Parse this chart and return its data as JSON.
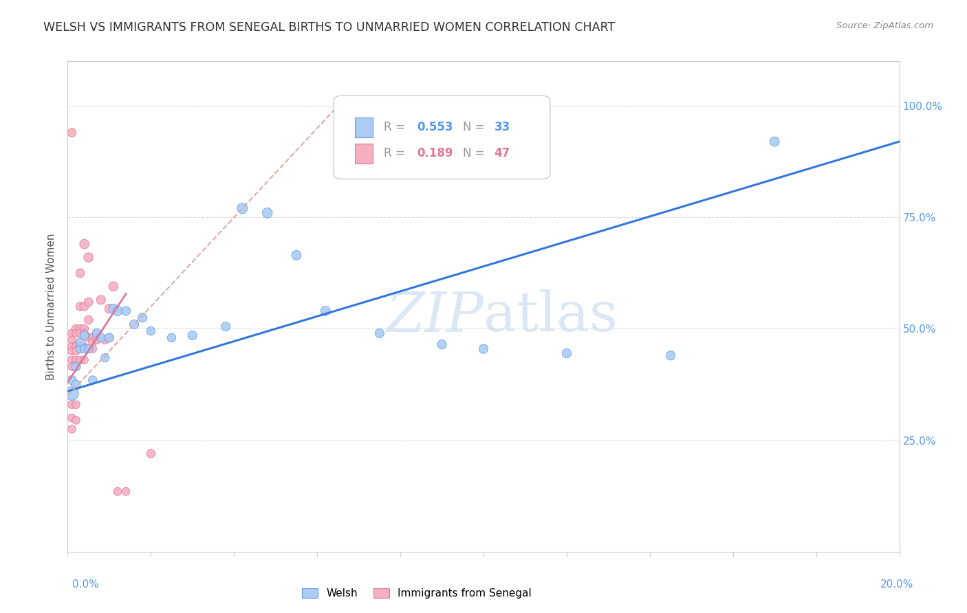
{
  "title": "WELSH VS IMMIGRANTS FROM SENEGAL BIRTHS TO UNMARRIED WOMEN CORRELATION CHART",
  "source": "Source: ZipAtlas.com",
  "ylabel": "Births to Unmarried Women",
  "ytick_labels": [
    "25.0%",
    "50.0%",
    "75.0%",
    "100.0%"
  ],
  "ytick_values": [
    0.25,
    0.5,
    0.75,
    1.0
  ],
  "xlim": [
    0.0,
    0.2
  ],
  "ylim": [
    0.0,
    1.1
  ],
  "welsh_color": "#aaccf5",
  "senegal_color": "#f5b0c0",
  "welsh_edge_color": "#6699dd",
  "senegal_edge_color": "#dd7799",
  "welsh_line_color": "#3377dd",
  "senegal_line_color": "#dd7799",
  "dashed_line_color": "#ddaaaa",
  "watermark_color": "#c5d8f0",
  "welsh_x": [
    0.001,
    0.001,
    0.002,
    0.002,
    0.003,
    0.003,
    0.004,
    0.004,
    0.005,
    0.006,
    0.007,
    0.008,
    0.009,
    0.01,
    0.011,
    0.012,
    0.014,
    0.016,
    0.018,
    0.02,
    0.025,
    0.03,
    0.038,
    0.042,
    0.048,
    0.055,
    0.062,
    0.075,
    0.09,
    0.1,
    0.12,
    0.145,
    0.17
  ],
  "welsh_y": [
    0.355,
    0.385,
    0.375,
    0.415,
    0.455,
    0.47,
    0.455,
    0.485,
    0.455,
    0.385,
    0.49,
    0.48,
    0.435,
    0.48,
    0.545,
    0.54,
    0.54,
    0.51,
    0.525,
    0.495,
    0.48,
    0.485,
    0.505,
    0.77,
    0.76,
    0.665,
    0.54,
    0.49,
    0.465,
    0.455,
    0.445,
    0.44,
    0.92
  ],
  "welsh_sizes": [
    200,
    90,
    90,
    90,
    80,
    80,
    80,
    80,
    80,
    80,
    90,
    90,
    80,
    90,
    100,
    100,
    90,
    90,
    90,
    80,
    80,
    90,
    90,
    120,
    110,
    100,
    100,
    90,
    90,
    90,
    90,
    90,
    100
  ],
  "senegal_x": [
    0.001,
    0.001,
    0.001,
    0.001,
    0.001,
    0.001,
    0.001,
    0.001,
    0.001,
    0.001,
    0.002,
    0.002,
    0.002,
    0.002,
    0.002,
    0.002,
    0.002,
    0.002,
    0.003,
    0.003,
    0.003,
    0.003,
    0.003,
    0.003,
    0.004,
    0.004,
    0.004,
    0.004,
    0.004,
    0.004,
    0.005,
    0.005,
    0.005,
    0.005,
    0.006,
    0.006,
    0.006,
    0.007,
    0.007,
    0.008,
    0.009,
    0.01,
    0.01,
    0.011,
    0.012,
    0.014,
    0.02
  ],
  "senegal_y": [
    0.94,
    0.49,
    0.475,
    0.46,
    0.45,
    0.43,
    0.415,
    0.33,
    0.3,
    0.275,
    0.5,
    0.49,
    0.46,
    0.45,
    0.43,
    0.415,
    0.33,
    0.295,
    0.625,
    0.55,
    0.5,
    0.49,
    0.46,
    0.43,
    0.69,
    0.55,
    0.5,
    0.49,
    0.46,
    0.43,
    0.66,
    0.56,
    0.52,
    0.48,
    0.48,
    0.47,
    0.455,
    0.49,
    0.475,
    0.565,
    0.475,
    0.545,
    0.48,
    0.595,
    0.135,
    0.135,
    0.22
  ],
  "senegal_sizes": [
    80,
    70,
    70,
    70,
    70,
    70,
    70,
    70,
    70,
    70,
    80,
    70,
    70,
    70,
    70,
    70,
    70,
    70,
    85,
    80,
    75,
    70,
    70,
    70,
    95,
    80,
    75,
    70,
    70,
    70,
    95,
    85,
    80,
    75,
    80,
    75,
    70,
    80,
    75,
    90,
    75,
    90,
    75,
    95,
    70,
    70,
    80
  ]
}
